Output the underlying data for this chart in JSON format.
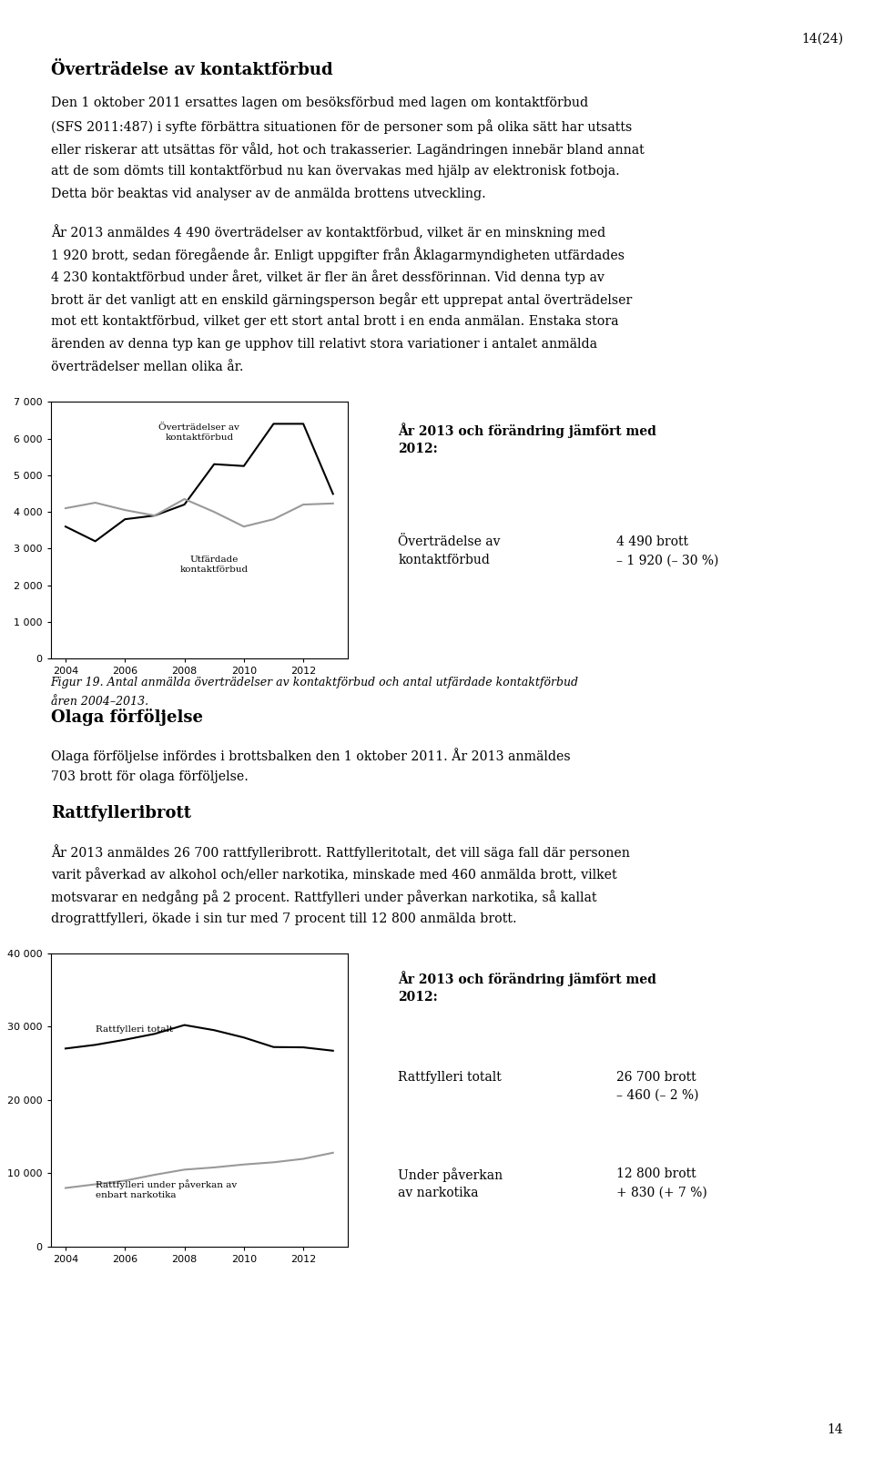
{
  "page_number": "14(24)",
  "heading1": "Överträdelse av kontaktförbud",
  "para1_lines": [
    "Den 1 oktober 2011 ersattes lagen om besöksförbud med lagen om kontaktförbud",
    "(SFS 2011:487) i syfte förbättra situationen för de personer som på olika sätt har utsatts",
    "eller riskerar att utsättas för våld, hot och trakasserier. Lagändringen innebär bland annat",
    "att de som dömts till kontaktförbud nu kan övervakas med hjälp av elektronisk fotboja.",
    "Detta bör beaktas vid analyser av de anmälda brottens utveckling."
  ],
  "para2_lines": [
    "År 2013 anmäldes 4 490 överträdelser av kontaktförbud, vilket är en minskning med",
    "1 920 brott, sedan föregående år. Enligt uppgifter från Åklagarmyndigheten utfärdades",
    "4 230 kontaktförbud under året, vilket är fler än året dessförinnan. Vid denna typ av",
    "brott är det vanligt att en enskild gärningsperson begår ett upprepat antal överträdelser",
    "mot ett kontaktförbud, vilket ger ett stort antal brott i en enda anmälan. Enstaka stora",
    "ärenden av denna typ kan ge upphov till relativt stora variationer i antalet anmälda",
    "överträdelser mellan olika år."
  ],
  "fig19_years": [
    2004,
    2005,
    2006,
    2007,
    2008,
    2009,
    2010,
    2011,
    2012,
    2013
  ],
  "fig19_overtradelser": [
    3600,
    3200,
    3800,
    3900,
    4200,
    5300,
    5250,
    6400,
    6400,
    4490
  ],
  "fig19_utfardade": [
    4100,
    4250,
    4050,
    3900,
    4350,
    4000,
    3600,
    3800,
    4200,
    4230
  ],
  "fig19_ylim": [
    0,
    7000
  ],
  "fig19_yticks": [
    0,
    1000,
    2000,
    3000,
    4000,
    5000,
    6000,
    7000
  ],
  "fig19_caption_line1": "Figur 19. Antal anmälda överträdelser av kontaktförbud och antal utfärdade kontaktförbud",
  "fig19_caption_line2": "åren 2004–2013.",
  "box1_title": "År 2013 och förändring jämfört med\n2012:",
  "box1_line1_label": "Överträdelse av\nkontaktförbud",
  "box1_line1_value": "4 490 brott\n– 1 920 (– 30 %)",
  "heading2": "Olaga förföljelse",
  "para3_lines": [
    "Olaga förföljelse infördes i brottsbalken den 1 oktober 2011. År 2013 anmäldes",
    "703 brott för olaga förföljelse."
  ],
  "heading3": "Rattfylleribrott",
  "para4_lines": [
    "År 2013 anmäldes 26 700 rattfylleribrott. Rattfylleritotalt, det vill säga fall där personen",
    "varit påverkad av alkohol och/eller narkotika, minskade med 460 anmälda brott, vilket",
    "motsvarar en nedgång på 2 procent. Rattfylleri under påverkan narkotika, så kallat",
    "drograttfylleri, ökade i sin tur med 7 procent till 12 800 anmälda brott."
  ],
  "fig20_years": [
    2004,
    2005,
    2006,
    2007,
    2008,
    2009,
    2010,
    2011,
    2012,
    2013
  ],
  "fig20_rattfylleri_totalt": [
    27000,
    27500,
    28200,
    29000,
    30200,
    29500,
    28500,
    27200,
    27160,
    26700
  ],
  "fig20_rattfylleri_narkotika": [
    8000,
    8500,
    9000,
    9800,
    10500,
    10800,
    11200,
    11500,
    11970,
    12800
  ],
  "fig20_ylim": [
    0,
    40000
  ],
  "fig20_yticks": [
    0,
    10000,
    20000,
    30000,
    40000
  ],
  "box2_title": "År 2013 och förändring jämfört med\n2012:",
  "box2_line1_label": "Rattfylleri totalt",
  "box2_line1_value": "26 700 brott\n– 460 (– 2 %)",
  "box2_line2_label": "Under påverkan\nav narkotika",
  "box2_line2_value": "12 800 brott\n+ 830 (+ 7 %)",
  "fig20_label1": "Rattfylleri totalt",
  "fig20_label2": "Rattfylleri under påverkan av\nenbart narkotika",
  "fig19_label1": "Överträdelser av\nkontaktförbud",
  "fig19_label2": "Utfärdade\nkontaktförbud",
  "background_color": "#ffffff",
  "box_bg_color": "#d8d8d8",
  "chart_bg_color": "#ffffff",
  "text_color": "#000000",
  "line1_color": "#000000",
  "line2_color": "#999999",
  "footer_number": "14"
}
